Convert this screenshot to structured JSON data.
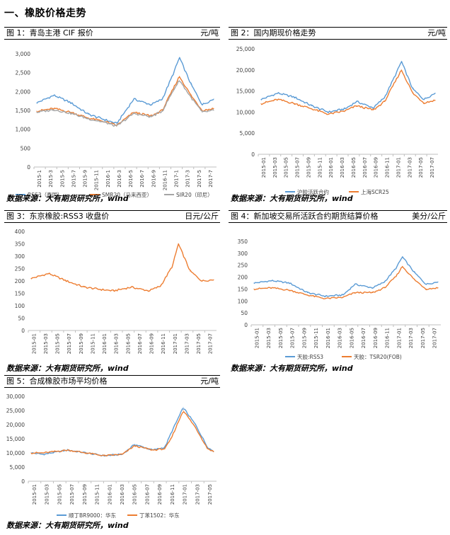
{
  "section_title": "一、橡胶价格走势",
  "source_text": "数据来源：大有期货研究所，wind",
  "chart_data": [
    {
      "type": "line",
      "title": "图 1：青岛主港 CIF 报价",
      "unit": "元/吨",
      "ylim": [
        0,
        3000
      ],
      "yticks": [
        "0",
        "500",
        "1,000",
        "1,500",
        "2,000",
        "2,500",
        "3,000"
      ],
      "xticks": [
        "2015-1",
        "2015-3",
        "2015-5",
        "2015-7",
        "2015-9",
        "2015-11",
        "2016-1",
        "2016-3",
        "2016-5",
        "2016-7",
        "2016-9",
        "2016-11",
        "2017-1",
        "2017-3",
        "2017-5",
        "2017-7"
      ],
      "x_dates": [
        "2015-01",
        "2015-04",
        "2015-07",
        "2015-10",
        "2016-01",
        "2016-03",
        "2016-06",
        "2016-09",
        "2016-11",
        "2017-01",
        "2017-02",
        "2017-04",
        "2017-06",
        "2017-08"
      ],
      "series": [
        {
          "name": "RSS3（泰国）",
          "color": "#5B9BD5",
          "values": [
            1700,
            1900,
            1700,
            1400,
            1250,
            1150,
            1800,
            1650,
            1800,
            2500,
            2900,
            2200,
            1650,
            1800
          ]
        },
        {
          "name": "SMR20（马来西亚）",
          "color": "#ED7D31",
          "values": [
            1480,
            1550,
            1450,
            1300,
            1200,
            1100,
            1450,
            1350,
            1500,
            2100,
            2400,
            1900,
            1500,
            1550
          ]
        },
        {
          "name": "SIR20（印尼）",
          "color": "#A5A5A5",
          "values": [
            1450,
            1520,
            1420,
            1280,
            1180,
            1080,
            1420,
            1330,
            1480,
            2050,
            2300,
            1850,
            1450,
            1500
          ]
        }
      ]
    },
    {
      "type": "line",
      "title": "图 2：国内期现价格走势",
      "unit": "元/吨",
      "ylim": [
        0,
        25000
      ],
      "yticks": [
        "0",
        "5,000",
        "10,000",
        "15,000",
        "20,000",
        "25,000"
      ],
      "xticks": [
        "2015-01",
        "2015-03",
        "2015-05",
        "2015-07",
        "2015-09",
        "2015-11",
        "2016-01",
        "2016-03",
        "2016-05",
        "2016-07",
        "2016-09",
        "2016-11",
        "2017-01",
        "2017-03",
        "2017-05",
        "2017-07"
      ],
      "x_dates": [
        "2015-01",
        "2015-04",
        "2015-07",
        "2015-10",
        "2016-01",
        "2016-04",
        "2016-06",
        "2016-09",
        "2016-11",
        "2017-01",
        "2017-02",
        "2017-04",
        "2017-06",
        "2017-08"
      ],
      "series": [
        {
          "name": "沪胶活跃合约",
          "color": "#5B9BD5",
          "values": [
            13000,
            14500,
            13500,
            11500,
            10000,
            10800,
            12500,
            11000,
            13500,
            19000,
            22000,
            15500,
            13000,
            14500
          ]
        },
        {
          "name": "上海SCR25",
          "color": "#ED7D31",
          "values": [
            12000,
            13000,
            12000,
            10800,
            9500,
            10300,
            11500,
            10500,
            12500,
            17500,
            20000,
            14500,
            12200,
            12800
          ]
        }
      ]
    },
    {
      "type": "line",
      "title": "图 3：东京橡胶:RSS3 收盘价",
      "unit": "日元/公斤",
      "ylim": [
        0,
        400
      ],
      "yticks": [
        "0",
        "50",
        "100",
        "150",
        "200",
        "250",
        "300",
        "350",
        "400"
      ],
      "xticks": [
        "2015-01",
        "2015-03",
        "2015-05",
        "2015-07",
        "2015-09",
        "2015-11",
        "2016-01",
        "2016-03",
        "2016-05",
        "2016-07",
        "2016-09",
        "2016-11",
        "2017-01",
        "2017-03",
        "2017-05",
        "2017-07"
      ],
      "x_dates": [
        "2015-01",
        "2015-04",
        "2015-07",
        "2015-10",
        "2016-01",
        "2016-03",
        "2016-06",
        "2016-09",
        "2016-11",
        "2017-01",
        "2017-02",
        "2017-04",
        "2017-06",
        "2017-08"
      ],
      "series": [
        {
          "name": "",
          "color": "#ED7D31",
          "values": [
            210,
            230,
            200,
            175,
            165,
            160,
            175,
            160,
            180,
            260,
            350,
            240,
            200,
            205
          ]
        }
      ]
    },
    {
      "type": "line",
      "title": "图 4：新加坡交易所活跃合约期货结算价格",
      "unit": "美分/公斤",
      "ylim": [
        0,
        350
      ],
      "yticks": [
        "0",
        "50",
        "100",
        "150",
        "200",
        "250",
        "300",
        "350"
      ],
      "xticks": [
        "2015-01",
        "2015-03",
        "2015-05",
        "2015-07",
        "2015-09",
        "2015-11",
        "2016-01",
        "2016-03",
        "2016-05",
        "2016-07",
        "2016-09",
        "2016-11",
        "2017-01",
        "2017-03",
        "2017-05",
        "2017-07"
      ],
      "x_dates": [
        "2015-01",
        "2015-04",
        "2015-07",
        "2015-10",
        "2016-01",
        "2016-04",
        "2016-06",
        "2016-09",
        "2016-11",
        "2017-01",
        "2017-02",
        "2017-04",
        "2017-06",
        "2017-08"
      ],
      "series": [
        {
          "name": "天胶:RSS3",
          "color": "#5B9BD5",
          "values": [
            175,
            185,
            175,
            135,
            120,
            125,
            170,
            155,
            180,
            240,
            285,
            220,
            170,
            180
          ]
        },
        {
          "name": "天胶：TSR20(FOB)",
          "color": "#ED7D31",
          "values": [
            150,
            155,
            145,
            125,
            110,
            115,
            135,
            135,
            155,
            205,
            245,
            190,
            150,
            155
          ]
        }
      ]
    },
    {
      "type": "line",
      "title": "图 5：合成橡胶市场平均价格",
      "unit": "元/吨",
      "ylim": [
        0,
        30000
      ],
      "yticks": [
        "0",
        "5,000",
        "10,000",
        "15,000",
        "20,000",
        "25,000",
        "30,000"
      ],
      "xticks": [
        "2015-01",
        "2015-03",
        "2015-05",
        "2015-07",
        "2015-09",
        "2015-11",
        "2016-01",
        "2016-03",
        "2016-05",
        "2016-07",
        "2016-09",
        "2016-11",
        "2017-01",
        "2017-03",
        "2017-05"
      ],
      "x_dates": [
        "2015-01",
        "2015-03",
        "2015-07",
        "2015-10",
        "2016-01",
        "2016-04",
        "2016-06",
        "2016-09",
        "2016-11",
        "2016-12",
        "2017-02",
        "2017-04",
        "2017-06",
        "2017-07"
      ],
      "series": [
        {
          "name": "顺丁BR9000：华东",
          "color": "#5B9BD5",
          "values": [
            10000,
            9500,
            11000,
            10000,
            9000,
            9500,
            13000,
            11000,
            12000,
            17000,
            26000,
            20000,
            12000,
            10500
          ]
        },
        {
          "name": "丁苯1502：华东",
          "color": "#ED7D31",
          "values": [
            10000,
            10000,
            11000,
            10000,
            9000,
            9500,
            12500,
            11000,
            11500,
            15000,
            25000,
            19000,
            11500,
            10500
          ]
        }
      ]
    }
  ]
}
